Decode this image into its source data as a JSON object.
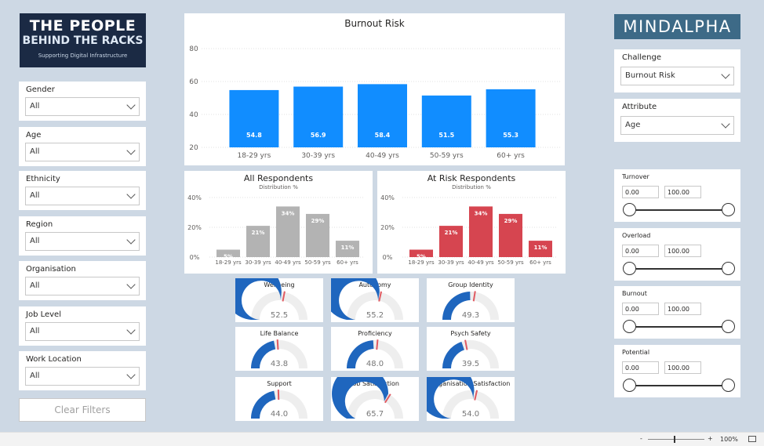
{
  "logo_left": {
    "line1": "THE PEOPLE",
    "line2": "BEHIND THE RACKS",
    "line3": "Supporting Digital Infrastructure"
  },
  "logo_right": {
    "text": "MINDALPHA"
  },
  "filters": [
    {
      "label": "Gender",
      "value": "All"
    },
    {
      "label": "Age",
      "value": "All"
    },
    {
      "label": "Ethnicity",
      "value": "All"
    },
    {
      "label": "Region",
      "value": "All"
    },
    {
      "label": "Organisation",
      "value": "All"
    },
    {
      "label": "Job Level",
      "value": "All"
    },
    {
      "label": "Work Location",
      "value": "All"
    }
  ],
  "clear_filters_label": "Clear Filters",
  "right_slicers": {
    "challenge": {
      "label": "Challenge",
      "value": "Burnout Risk"
    },
    "attribute": {
      "label": "Attribute",
      "value": "Age"
    }
  },
  "range_slicers": [
    {
      "label": "Turnover",
      "min": "0.00",
      "max": "100.00"
    },
    {
      "label": "Overload",
      "min": "0.00",
      "max": "100.00"
    },
    {
      "label": "Burnout",
      "min": "0.00",
      "max": "100.00"
    },
    {
      "label": "Potential",
      "min": "0.00",
      "max": "100.00"
    }
  ],
  "chart_data": [
    {
      "type": "bar",
      "title": "Burnout Risk",
      "categories": [
        "18-29 yrs",
        "30-39 yrs",
        "40-49 yrs",
        "50-59 yrs",
        "60+ yrs"
      ],
      "values": [
        54.8,
        56.9,
        58.4,
        51.5,
        55.3
      ],
      "value_labels": [
        "54.8",
        "56.9",
        "58.4",
        "51.5",
        "55.3"
      ],
      "yticks": [
        "80",
        "60",
        "40",
        "20"
      ],
      "ylim": [
        20,
        80
      ],
      "color": "#118dff",
      "grid": true
    },
    {
      "type": "bar",
      "title": "All Respondents",
      "subtitle": "Distribution %",
      "categories": [
        "18-29 yrs",
        "30-39 yrs",
        "40-49 yrs",
        "50-59 yrs",
        "60+ yrs"
      ],
      "values": [
        5,
        21,
        34,
        29,
        11
      ],
      "value_labels": [
        "5%",
        "21%",
        "34%",
        "29%",
        "11%"
      ],
      "yticks": [
        "40%",
        "20%",
        "0%"
      ],
      "ylim": [
        0,
        40
      ],
      "color": "#b3b3b3",
      "grid": true
    },
    {
      "type": "bar",
      "title": "At Risk Respondents",
      "subtitle": "Distribution %",
      "categories": [
        "18-29 yrs",
        "30-39 yrs",
        "40-49 yrs",
        "50-59 yrs",
        "60+ yrs"
      ],
      "values": [
        5,
        21,
        34,
        29,
        11
      ],
      "value_labels": [
        "5%",
        "21%",
        "34%",
        "29%",
        "11%"
      ],
      "yticks": [
        "40%",
        "20%",
        "0%"
      ],
      "ylim": [
        0,
        40
      ],
      "color": "#d64550",
      "grid": true
    }
  ],
  "gauges": [
    {
      "title": "Wellbeing",
      "value": 52.5,
      "label": "52.5",
      "target": 0.56
    },
    {
      "title": "Autonomy",
      "value": 55.2,
      "label": "55.2",
      "target": 0.57
    },
    {
      "title": "Group Identity",
      "value": 49.3,
      "label": "49.3",
      "target": 0.55
    },
    {
      "title": "Life Balance",
      "value": 43.8,
      "label": "43.8",
      "target": 0.48
    },
    {
      "title": "Proficiency",
      "value": 48.0,
      "label": "48.0",
      "target": 0.53
    },
    {
      "title": "Psych Safety",
      "value": 39.5,
      "label": "39.5",
      "target": 0.44
    },
    {
      "title": "Support",
      "value": 44.0,
      "label": "44.0",
      "target": 0.49
    },
    {
      "title": "Job Satisfaction",
      "value": 65.7,
      "label": "65.7",
      "target": 0.68
    },
    {
      "title": "Organisation Satisfaction",
      "value": 54.0,
      "label": "54.0",
      "target": 0.57
    }
  ],
  "gauge_colors": {
    "fill": "#1f66be",
    "track": "#eeeeee",
    "target": "#e05a62"
  },
  "status_bar": {
    "minus": "-",
    "plus": "+",
    "zoom": "100%"
  }
}
